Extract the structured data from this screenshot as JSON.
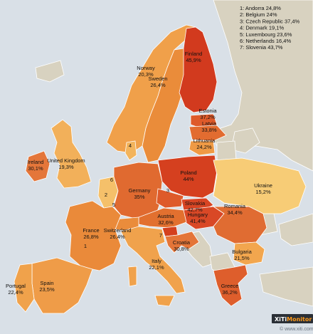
{
  "legend": [
    {
      "num": "1",
      "label": "Andorra 24,8%"
    },
    {
      "num": "2",
      "label": "Belgium 24%"
    },
    {
      "num": "3",
      "label": "Czech Republic 37,4%"
    },
    {
      "num": "4",
      "label": "Denmark 19,1%"
    },
    {
      "num": "5",
      "label": "Luxembourg 23,6%"
    },
    {
      "num": "6",
      "label": "Netherlands 16,4%"
    },
    {
      "num": "7",
      "label": "Slovenia 43,7%"
    }
  ],
  "countries": [
    {
      "id": "finland",
      "name": "Finland",
      "value": "45,9%",
      "color": "#d23a1e"
    },
    {
      "id": "norway",
      "name": "Norway",
      "value": "20,3%",
      "color": "#f0a04a"
    },
    {
      "id": "sweden",
      "name": "Sweden",
      "value": "26,4%",
      "color": "#ea8c3a"
    },
    {
      "id": "estonia",
      "name": "Estonia",
      "value": "37,2%",
      "color": "#de5a2a"
    },
    {
      "id": "latvia",
      "name": "Latvia",
      "value": "33,8%",
      "color": "#e26c30"
    },
    {
      "id": "lithuania",
      "name": "Lithuania",
      "value": "24,2%",
      "color": "#ef9a45"
    },
    {
      "id": "ireland",
      "name": "Ireland",
      "value": "30,1%",
      "color": "#e4763a"
    },
    {
      "id": "uk",
      "name": "United Kingdom",
      "value": "19,3%",
      "color": "#f2b05a"
    },
    {
      "id": "poland",
      "name": "Poland",
      "value": "44%",
      "color": "#d5401f"
    },
    {
      "id": "ukraine",
      "name": "Ukraine",
      "value": "15,2%",
      "color": "#f7cc76"
    },
    {
      "id": "germany",
      "name": "Germany",
      "value": "35%",
      "color": "#e06a30"
    },
    {
      "id": "slovakia",
      "name": "Slovakia",
      "value": "42,7%",
      "color": "#d84524"
    },
    {
      "id": "hungary",
      "name": "Hungary",
      "value": "41,4%",
      "color": "#d94826"
    },
    {
      "id": "austria",
      "name": "Austria",
      "value": "32,6%",
      "color": "#e2702f"
    },
    {
      "id": "romania",
      "name": "Romania",
      "value": "34,4%",
      "color": "#e06c32"
    },
    {
      "id": "france",
      "name": "France",
      "value": "26,8%",
      "color": "#ea8a3a"
    },
    {
      "id": "switzerland",
      "name": "Switzerland",
      "value": "26,4%",
      "color": "#ea8c3b"
    },
    {
      "id": "croatia",
      "name": "Croatia",
      "value": "30,8%",
      "color": "#e47538"
    },
    {
      "id": "bulgaria",
      "name": "Bulgaria",
      "value": "21,5%",
      "color": "#f2a64e"
    },
    {
      "id": "italy",
      "name": "Italy",
      "value": "22,1%",
      "color": "#f0a24c"
    },
    {
      "id": "portugal",
      "name": "Portugal",
      "value": "22,4%",
      "color": "#f0a24b"
    },
    {
      "id": "spain",
      "name": "Spain",
      "value": "23,5%",
      "color": "#ef9c48"
    },
    {
      "id": "greece",
      "name": "Greece",
      "value": "36,2%",
      "color": "#de5e2c"
    },
    {
      "id": "czech",
      "name": "",
      "value": "",
      "color": "#de5a2a"
    },
    {
      "id": "slovenia",
      "name": "",
      "value": "",
      "color": "#d4401e"
    },
    {
      "id": "denmark",
      "name": "",
      "value": "",
      "color": "#f3b45c"
    },
    {
      "id": "benelux",
      "name": "",
      "value": "",
      "color": "#f5c06a"
    }
  ],
  "markers": [
    "1",
    "2",
    "3",
    "4",
    "5",
    "6",
    "7"
  ],
  "no_data_color": "#d8d2c0",
  "brand": {
    "name": "XiTi",
    "accent": "Monitor",
    "url": "© www.xiti.com"
  }
}
